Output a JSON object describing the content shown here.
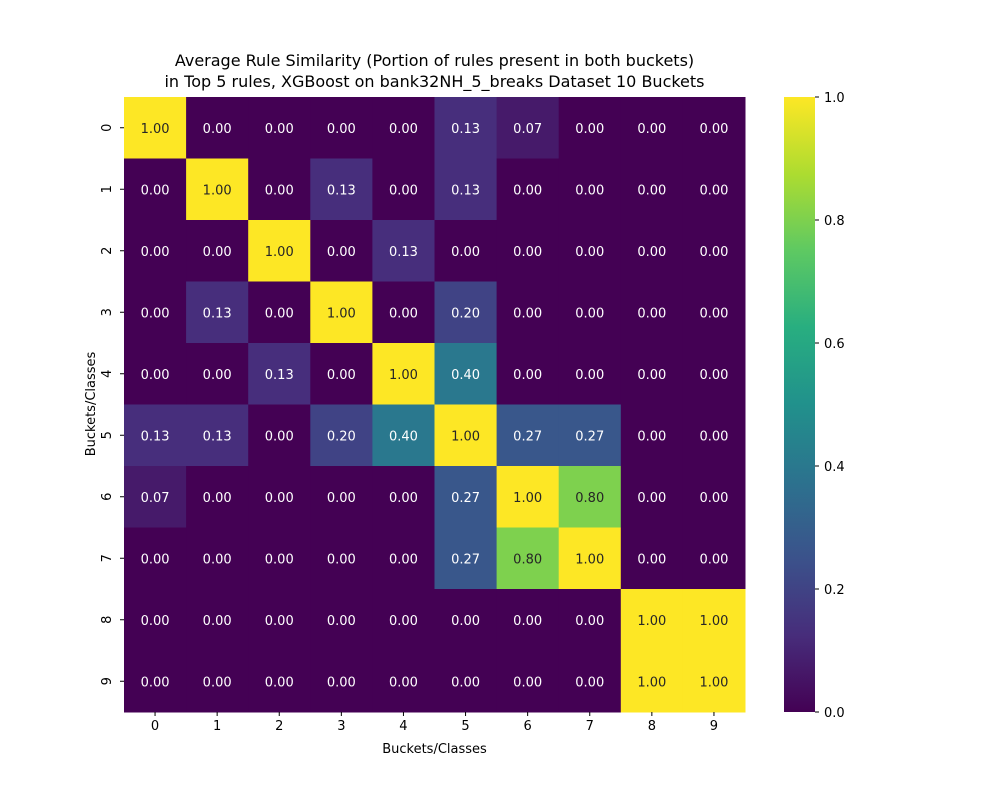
{
  "chart_data": {
    "type": "heatmap",
    "title_lines": [
      "Average Rule Similarity (Portion of rules present in both buckets)",
      "in Top 5 rules, XGBoost on bank32NH_5_breaks Dataset 10 Buckets"
    ],
    "xlabel": "Buckets/Classes",
    "ylabel": "Buckets/Classes",
    "x_categories": [
      "0",
      "1",
      "2",
      "3",
      "4",
      "5",
      "6",
      "7",
      "8",
      "9"
    ],
    "y_categories": [
      "0",
      "1",
      "2",
      "3",
      "4",
      "5",
      "6",
      "7",
      "8",
      "9"
    ],
    "values": [
      [
        1.0,
        0.0,
        0.0,
        0.0,
        0.0,
        0.13,
        0.07,
        0.0,
        0.0,
        0.0
      ],
      [
        0.0,
        1.0,
        0.0,
        0.13,
        0.0,
        0.13,
        0.0,
        0.0,
        0.0,
        0.0
      ],
      [
        0.0,
        0.0,
        1.0,
        0.0,
        0.13,
        0.0,
        0.0,
        0.0,
        0.0,
        0.0
      ],
      [
        0.0,
        0.13,
        0.0,
        1.0,
        0.0,
        0.2,
        0.0,
        0.0,
        0.0,
        0.0
      ],
      [
        0.0,
        0.0,
        0.13,
        0.0,
        1.0,
        0.4,
        0.0,
        0.0,
        0.0,
        0.0
      ],
      [
        0.13,
        0.13,
        0.0,
        0.2,
        0.4,
        1.0,
        0.27,
        0.27,
        0.0,
        0.0
      ],
      [
        0.07,
        0.0,
        0.0,
        0.0,
        0.0,
        0.27,
        1.0,
        0.8,
        0.0,
        0.0
      ],
      [
        0.0,
        0.0,
        0.0,
        0.0,
        0.0,
        0.27,
        0.8,
        1.0,
        0.0,
        0.0
      ],
      [
        0.0,
        0.0,
        0.0,
        0.0,
        0.0,
        0.0,
        0.0,
        0.0,
        1.0,
        1.0
      ],
      [
        0.0,
        0.0,
        0.0,
        0.0,
        0.0,
        0.0,
        0.0,
        0.0,
        1.0,
        1.0
      ]
    ],
    "value_format": "2 decimals",
    "colormap": "viridis",
    "colorbar": {
      "range": [
        0.0,
        1.0
      ],
      "ticks": [
        "0.0",
        "0.2",
        "0.4",
        "0.6",
        "0.8",
        "1.0"
      ],
      "placement": "right"
    },
    "grid": false
  }
}
